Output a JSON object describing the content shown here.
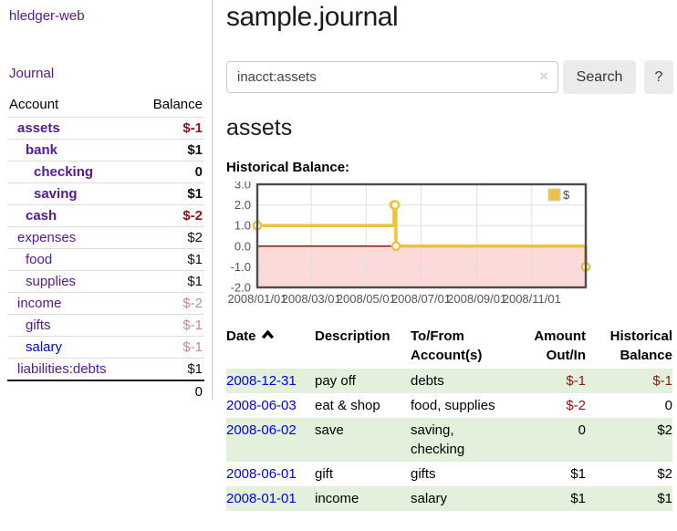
{
  "sidebar": {
    "app_title": "hledger-web",
    "journal_label": "Journal",
    "accounts": {
      "header_account": "Account",
      "header_balance": "Balance",
      "rows": [
        {
          "name": "assets",
          "balance": "$-1",
          "indent": 1,
          "bold": true,
          "balance_style": "neg",
          "link_style": "visited"
        },
        {
          "name": "bank",
          "balance": "$1",
          "indent": 2,
          "bold": true,
          "balance_style": "pos",
          "link_style": "visited"
        },
        {
          "name": "checking",
          "balance": "0",
          "indent": 3,
          "bold": true,
          "balance_style": "pos",
          "link_style": "visited"
        },
        {
          "name": "saving",
          "balance": "$1",
          "indent": 3,
          "bold": true,
          "balance_style": "pos",
          "link_style": "visited"
        },
        {
          "name": "cash",
          "balance": "$-2",
          "indent": 2,
          "bold": true,
          "balance_style": "neg",
          "link_style": "visited"
        },
        {
          "name": "expenses",
          "balance": "$2",
          "indent": 1,
          "bold": false,
          "balance_style": "pos",
          "link_style": "visited"
        },
        {
          "name": "food",
          "balance": "$1",
          "indent": 2,
          "bold": false,
          "balance_style": "pos",
          "link_style": "visited"
        },
        {
          "name": "supplies",
          "balance": "$1",
          "indent": 2,
          "bold": false,
          "balance_style": "pos",
          "link_style": "visited"
        },
        {
          "name": "income",
          "balance": "$-2",
          "indent": 1,
          "bold": false,
          "balance_style": "neg-dim",
          "link_style": "visited"
        },
        {
          "name": "gifts",
          "balance": "$-1",
          "indent": 2,
          "bold": false,
          "balance_style": "neg-dim",
          "link_style": "visited"
        },
        {
          "name": "salary",
          "balance": "$-1",
          "indent": 2,
          "bold": false,
          "balance_style": "neg-dim",
          "link_style": "unvisited"
        },
        {
          "name": "liabilities:debts",
          "balance": "$1",
          "indent": 1,
          "bold": false,
          "balance_style": "pos",
          "link_style": "visited"
        }
      ],
      "total": "0"
    }
  },
  "header": {
    "title": "sample.journal"
  },
  "search": {
    "value": "inacct:assets",
    "clear_icon": "×",
    "button_label": "Search",
    "help_label": "?"
  },
  "account_page": {
    "heading": "assets",
    "chart_label": "Historical Balance:"
  },
  "chart_data": {
    "type": "line",
    "title": "Historical Balance",
    "step": true,
    "x_range": [
      "2008-01-01",
      "2008-12-31"
    ],
    "ylim": [
      -2,
      3
    ],
    "y_ticks": [
      "3.0",
      "2.0",
      "1.0",
      "0.0",
      "-1.0",
      "-2.0"
    ],
    "x_ticks": [
      "2008/01/01",
      "2008/03/01",
      "2008/05/01",
      "2008/07/01",
      "2008/09/01",
      "2008/11/01"
    ],
    "grid": true,
    "series": [
      {
        "name": "$",
        "color": "#edc240",
        "points": [
          [
            "2008-01-01",
            1
          ],
          [
            "2008-06-01",
            2
          ],
          [
            "2008-06-02",
            2
          ],
          [
            "2008-06-03",
            0
          ],
          [
            "2008-12-31",
            -1
          ]
        ]
      }
    ],
    "legend": {
      "label": "$",
      "position": "top-right"
    },
    "negative_fill": "#fcdada",
    "zero_line_color": "#8b0000"
  },
  "register": {
    "columns": [
      {
        "label": "Date",
        "align": "left",
        "sorted": "asc"
      },
      {
        "label": "Description",
        "align": "left"
      },
      {
        "label": "To/From Account(s)",
        "align": "left"
      },
      {
        "label": "Amount Out/In",
        "align": "right"
      },
      {
        "label": "Historical Balance",
        "align": "right"
      }
    ],
    "sort_icon": "chevron-up-icon",
    "rows": [
      {
        "date": "2008-12-31",
        "description": "pay off",
        "accounts": "debts",
        "amount": "$-1",
        "amount_negative": true,
        "balance": "$-1",
        "balance_negative": true
      },
      {
        "date": "2008-06-03",
        "description": "eat & shop",
        "accounts": "food, supplies",
        "amount": "$-2",
        "amount_negative": true,
        "balance": "0",
        "balance_negative": false
      },
      {
        "date": "2008-06-02",
        "description": "save",
        "accounts": "saving, checking",
        "amount": "0",
        "amount_negative": false,
        "balance": "$2",
        "balance_negative": false
      },
      {
        "date": "2008-06-01",
        "description": "gift",
        "accounts": "gifts",
        "amount": "$1",
        "amount_negative": false,
        "balance": "$2",
        "balance_negative": false
      },
      {
        "date": "2008-01-01",
        "description": "income",
        "accounts": "salary",
        "amount": "$1",
        "amount_negative": false,
        "balance": "$1",
        "balance_negative": false
      }
    ]
  },
  "colors": {
    "visited_link_purple": "#551a8b",
    "unvisited_link_blue": "#0000e0",
    "register_date_blue": "#0000e6",
    "negative_red": "#8c1616",
    "negative_dim_red": "#c48a8a",
    "stripe_green": "#e2f0dc",
    "chart_line_gold": "#edc240",
    "chart_negative_pink": "#fcdada",
    "chart_zero_line": "#8b0000",
    "button_gray": "#ebebeb"
  }
}
